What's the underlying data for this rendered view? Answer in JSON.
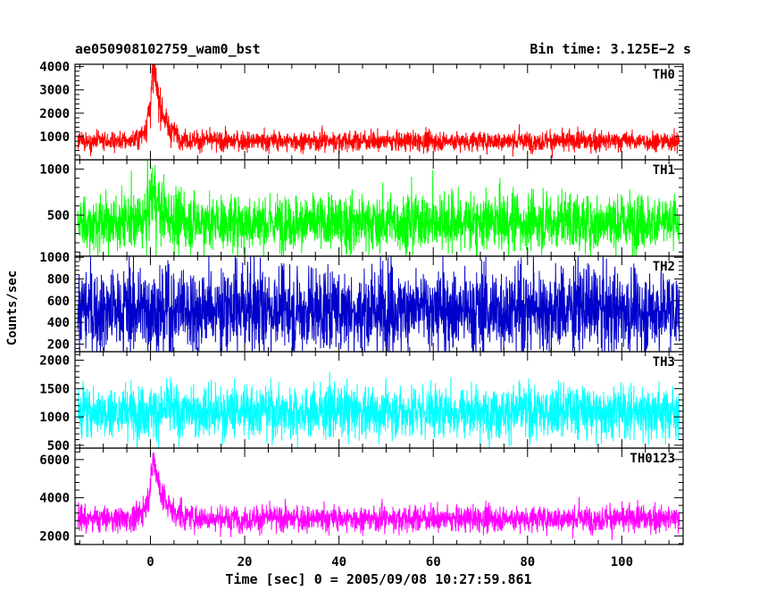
{
  "header": {
    "title": "ae050908102759_wam0_bst",
    "bin_time": "Bin time: 3.125E−2 s"
  },
  "chart_data": {
    "type": "line",
    "xlabel": "Time [sec] 0 = 2005/09/08 10:27:59.861",
    "ylabel": "Counts/sec",
    "xlim": [
      -16,
      113
    ],
    "x_ticks": [
      0,
      20,
      40,
      60,
      80,
      100
    ],
    "grid": false,
    "panels": [
      {
        "name": "TH0",
        "color": "#ff0000",
        "ylim": [
          0,
          4100
        ],
        "y_ticks": [
          1000,
          2000,
          3000,
          4000
        ],
        "baseline": 800,
        "noise": 210,
        "peak": {
          "t": 0.6,
          "height": 3200,
          "rise": 1.0,
          "decay": 2.0
        },
        "x": [
          -16,
          -5,
          -1,
          0,
          0.6,
          1.5,
          3,
          6,
          20,
          60,
          100,
          112
        ],
        "y": [
          800,
          800,
          1500,
          3000,
          4050,
          3000,
          1600,
          800,
          800,
          800,
          800,
          800
        ]
      },
      {
        "name": "TH1",
        "color": "#00ff00",
        "ylim": [
          55,
          1100
        ],
        "y_ticks": [
          500,
          1000
        ],
        "baseline": 420,
        "noise": 150,
        "peak": {
          "t": 0.6,
          "height": 320,
          "rise": 1.0,
          "decay": 2.0
        },
        "x": [
          -16,
          -1,
          0.6,
          3,
          20,
          60,
          100,
          112
        ],
        "y": [
          420,
          420,
          740,
          480,
          420,
          420,
          420,
          420
        ]
      },
      {
        "name": "TH2",
        "color": "#0000cc",
        "ylim": [
          130,
          1010
        ],
        "y_ticks": [
          200,
          400,
          600,
          800,
          1000
        ],
        "baseline": 520,
        "noise": 190,
        "peak": {
          "t": 0.6,
          "height": 0,
          "rise": 1.0,
          "decay": 2.0
        },
        "x": [
          -16,
          0,
          20,
          60,
          100,
          112
        ],
        "y": [
          520,
          520,
          520,
          520,
          520,
          520
        ]
      },
      {
        "name": "TH3",
        "color": "#00ffff",
        "ylim": [
          450,
          2150
        ],
        "y_ticks": [
          500,
          1000,
          1500,
          2000
        ],
        "baseline": 1100,
        "noise": 230,
        "peak": {
          "t": 0.6,
          "height": 0,
          "rise": 1.0,
          "decay": 2.0
        },
        "x": [
          -16,
          0,
          20,
          60,
          100,
          112
        ],
        "y": [
          1100,
          1100,
          1100,
          1100,
          1100,
          1100
        ]
      },
      {
        "name": "TH0123",
        "color": "#ff00ff",
        "ylim": [
          1550,
          6600
        ],
        "y_ticks": [
          2000,
          4000,
          6000
        ],
        "baseline": 2900,
        "noise": 330,
        "peak": {
          "t": 0.6,
          "height": 3300,
          "rise": 1.0,
          "decay": 2.0
        },
        "x": [
          -16,
          -1,
          0,
          0.6,
          1.5,
          3,
          6,
          20,
          60,
          100,
          112
        ],
        "y": [
          2900,
          3500,
          5200,
          6450,
          5200,
          3800,
          2900,
          2900,
          2900,
          2900,
          2900
        ]
      }
    ]
  }
}
